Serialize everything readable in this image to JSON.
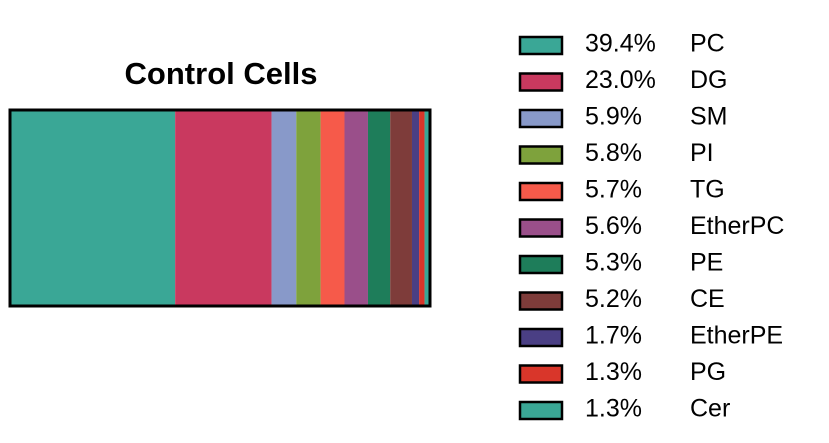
{
  "chart_data": {
    "type": "stacked-bar",
    "title": "Control Cells",
    "series": [
      {
        "name": "PC",
        "color": "#3aa796",
        "values": [
          39.4
        ],
        "value_labels": [
          "39.4%"
        ]
      },
      {
        "name": "DG",
        "color": "#c9395f",
        "values": [
          23.0
        ],
        "value_labels": [
          "23.0%"
        ]
      },
      {
        "name": "SM",
        "color": "#8899c9",
        "values": [
          5.9
        ],
        "value_labels": [
          "5.9%"
        ]
      },
      {
        "name": "PI",
        "color": "#7ea23c",
        "values": [
          5.8
        ],
        "value_labels": [
          "5.8%"
        ]
      },
      {
        "name": "TG",
        "color": "#f65a4a",
        "values": [
          5.7
        ],
        "value_labels": [
          "5.7%"
        ]
      },
      {
        "name": "EtherPC",
        "color": "#9a4f8a",
        "values": [
          5.6
        ],
        "value_labels": [
          "5.6%"
        ]
      },
      {
        "name": "PE",
        "color": "#1e7d5a",
        "values": [
          5.3
        ],
        "value_labels": [
          "5.3%"
        ]
      },
      {
        "name": "CE",
        "color": "#7e3c3a",
        "values": [
          5.2
        ],
        "value_labels": [
          "5.2%"
        ]
      },
      {
        "name": "EtherPE",
        "color": "#4a3f84",
        "values": [
          1.7
        ],
        "value_labels": [
          "1.7%"
        ]
      },
      {
        "name": "PG",
        "color": "#d9362a",
        "values": [
          1.3
        ],
        "value_labels": [
          "1.3%"
        ]
      },
      {
        "name": "Cer",
        "color": "#3aa796",
        "values": [
          1.3
        ],
        "value_labels": [
          "1.3%"
        ]
      }
    ]
  }
}
